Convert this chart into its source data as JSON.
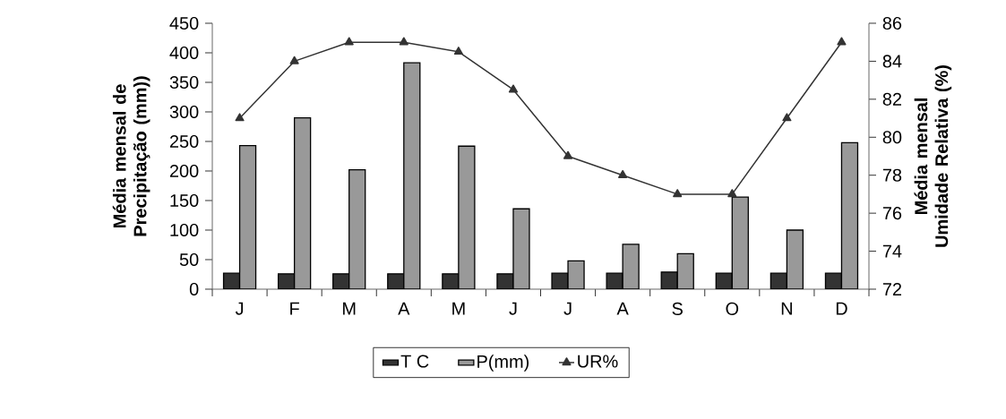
{
  "chart_data": {
    "type": "bar",
    "ylabel": "Média mensal de Precipitação (mm))",
    "y2label": "Média mensal Umidade Relativa (%)",
    "categories": [
      "J",
      "F",
      "M",
      "A",
      "M",
      "J",
      "J",
      "A",
      "S",
      "O",
      "N",
      "D"
    ],
    "series": [
      {
        "name": "T C",
        "color": "#333333",
        "values": [
          27,
          26,
          26,
          26,
          26,
          26,
          27,
          27,
          29,
          27,
          27,
          27
        ]
      },
      {
        "name": "P(mm)",
        "color": "#999999",
        "values": [
          243,
          290,
          202,
          383,
          242,
          136,
          48,
          76,
          60,
          156,
          100,
          248
        ]
      },
      {
        "name": "UR%",
        "type": "line",
        "axis": "y2",
        "color": "#333333",
        "marker": "triangle",
        "line_style": "solid",
        "values": [
          81,
          84,
          85,
          85,
          84.5,
          82.5,
          79,
          78,
          77,
          77,
          81,
          85
        ]
      }
    ],
    "ylim": [
      0,
      450
    ],
    "yticks": [
      0,
      50,
      100,
      150,
      200,
      250,
      300,
      350,
      400,
      450
    ],
    "y2lim": [
      72,
      86
    ],
    "y2ticks": [
      72,
      74,
      76,
      78,
      80,
      82,
      84,
      86
    ],
    "grid": false,
    "legend": "bottom"
  }
}
